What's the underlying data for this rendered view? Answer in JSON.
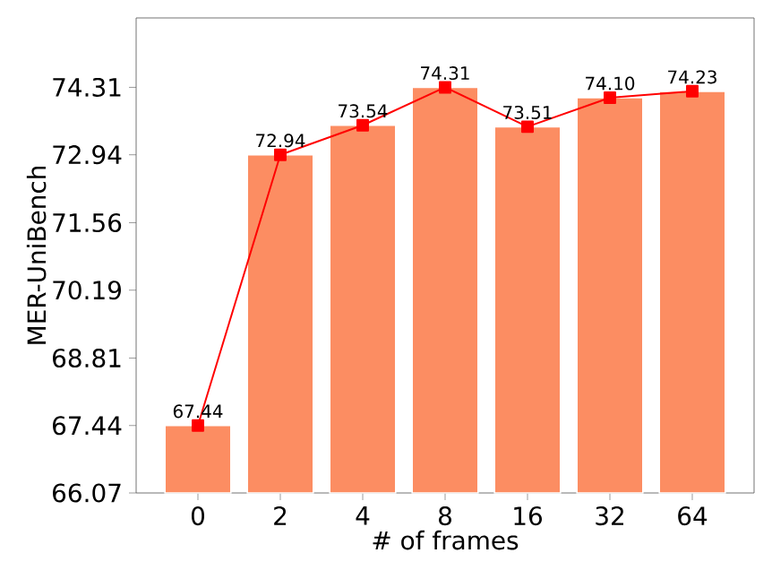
{
  "chart_data": {
    "type": "bar",
    "xlabel": "# of frames",
    "ylabel": "MER-UniBench",
    "categories": [
      "0",
      "2",
      "4",
      "8",
      "16",
      "32",
      "64"
    ],
    "series": [
      {
        "color": "#fc8d62",
        "values": [
          67.44,
          72.94,
          73.54,
          74.31,
          73.51,
          74.1,
          74.23
        ]
      },
      {
        "type": "line",
        "color": "#ff0000",
        "marker": "square",
        "values": [
          67.44,
          72.94,
          73.54,
          74.31,
          73.51,
          74.1,
          74.23
        ],
        "value_labels": [
          "67.44",
          "72.94",
          "73.54",
          "74.31",
          "73.51",
          "74.10",
          "74.23"
        ]
      }
    ],
    "ylim": [
      66.07,
      75.72
    ],
    "yticks": [
      66.07,
      67.44,
      68.81,
      70.19,
      71.56,
      72.94,
      74.31
    ],
    "grid": false
  }
}
